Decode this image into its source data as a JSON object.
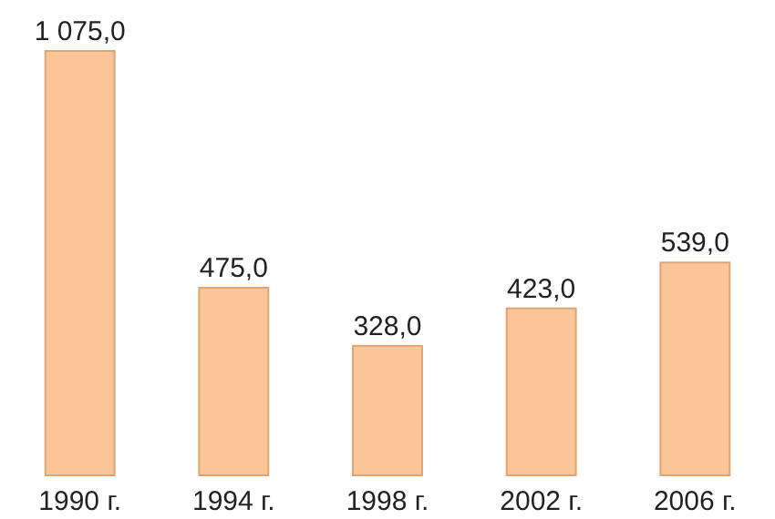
{
  "chart_data": {
    "type": "bar",
    "categories": [
      "1990 г.",
      "1994 г.",
      "1998 г.",
      "2002 г.",
      "2006 г."
    ],
    "values": [
      1075,
      475,
      328,
      423,
      539
    ],
    "value_labels": [
      "1 075,0",
      "475,0",
      "328,0",
      "423,0",
      "539,0"
    ],
    "color": "#fbc597"
  }
}
